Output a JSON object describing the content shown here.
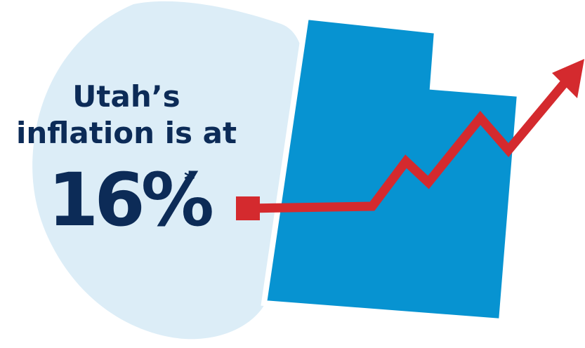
{
  "headline": {
    "line1": "Utah’s",
    "line2": "inflation is at"
  },
  "stat": {
    "value": "16%",
    "footnote_mark": "*"
  },
  "colors": {
    "blob": "#dcedf7",
    "state": "#0793d1",
    "arrow": "#d42a2e",
    "text": "#0c2b57"
  },
  "icons": {
    "state_shape": "utah-state-icon",
    "trend": "trend-arrow-icon"
  }
}
